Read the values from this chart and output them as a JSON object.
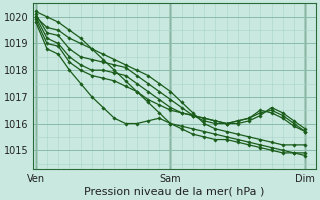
{
  "bg_color": "#c8e8e0",
  "grid_major_color": "#88bbaa",
  "grid_minor_color": "#aad4cc",
  "line_color": "#1a5c1a",
  "marker": "D",
  "marker_size": 1.8,
  "line_width": 0.9,
  "title": "Pression niveau de la mer( hPa )",
  "title_fontsize": 8,
  "xlabel_ticks": [
    "Ven",
    "Sam",
    "Dim"
  ],
  "xlabel_tick_positions": [
    0,
    24,
    48
  ],
  "ylim": [
    1014.3,
    1020.5
  ],
  "xlim": [
    -0.5,
    50
  ],
  "yticks": [
    1015,
    1016,
    1017,
    1018,
    1019,
    1020
  ],
  "series": [
    [
      1020.2,
      1020.0,
      1019.8,
      1019.5,
      1019.2,
      1018.8,
      1018.4,
      1018.0,
      1017.6,
      1017.2,
      1016.8,
      1016.4,
      1016.0,
      1015.9,
      1015.8,
      1015.7,
      1015.6,
      1015.5,
      1015.4,
      1015.3,
      1015.2,
      1015.1,
      1015.0,
      1014.9,
      1014.9
    ],
    [
      1020.0,
      1019.6,
      1019.5,
      1019.2,
      1019.0,
      1018.8,
      1018.6,
      1018.4,
      1018.2,
      1018.0,
      1017.8,
      1017.5,
      1017.2,
      1016.8,
      1016.4,
      1016.0,
      1015.8,
      1015.7,
      1015.6,
      1015.5,
      1015.4,
      1015.3,
      1015.2,
      1015.2,
      1015.2
    ],
    [
      1020.1,
      1019.4,
      1019.3,
      1018.8,
      1018.5,
      1018.4,
      1018.3,
      1018.2,
      1018.1,
      1017.8,
      1017.5,
      1017.2,
      1016.9,
      1016.6,
      1016.3,
      1016.1,
      1016.0,
      1016.0,
      1016.1,
      1016.2,
      1016.5,
      1016.4,
      1016.2,
      1015.9,
      1015.7
    ],
    [
      1020.0,
      1019.2,
      1019.0,
      1018.5,
      1018.2,
      1018.0,
      1018.0,
      1017.9,
      1017.8,
      1017.5,
      1017.2,
      1016.9,
      1016.6,
      1016.4,
      1016.3,
      1016.2,
      1016.1,
      1016.0,
      1016.0,
      1016.1,
      1016.3,
      1016.6,
      1016.4,
      1016.1,
      1015.8
    ],
    [
      1019.9,
      1019.0,
      1018.9,
      1018.3,
      1018.0,
      1017.8,
      1017.7,
      1017.6,
      1017.4,
      1017.2,
      1016.9,
      1016.7,
      1016.5,
      1016.4,
      1016.3,
      1016.2,
      1016.1,
      1016.0,
      1016.1,
      1016.2,
      1016.4,
      1016.5,
      1016.3,
      1016.0,
      1015.7
    ],
    [
      1019.8,
      1018.8,
      1018.6,
      1018.0,
      1017.5,
      1017.0,
      1016.6,
      1016.2,
      1016.0,
      1016.0,
      1016.1,
      1016.2,
      1016.0,
      1015.8,
      1015.6,
      1015.5,
      1015.4,
      1015.4,
      1015.3,
      1015.2,
      1015.1,
      1015.0,
      1014.9,
      1014.9,
      1014.8
    ]
  ],
  "series_x": [
    0,
    2,
    4,
    6,
    8,
    10,
    12,
    14,
    16,
    18,
    20,
    22,
    24,
    26,
    28,
    30,
    32,
    34,
    36,
    38,
    40,
    42,
    44,
    46,
    48
  ]
}
